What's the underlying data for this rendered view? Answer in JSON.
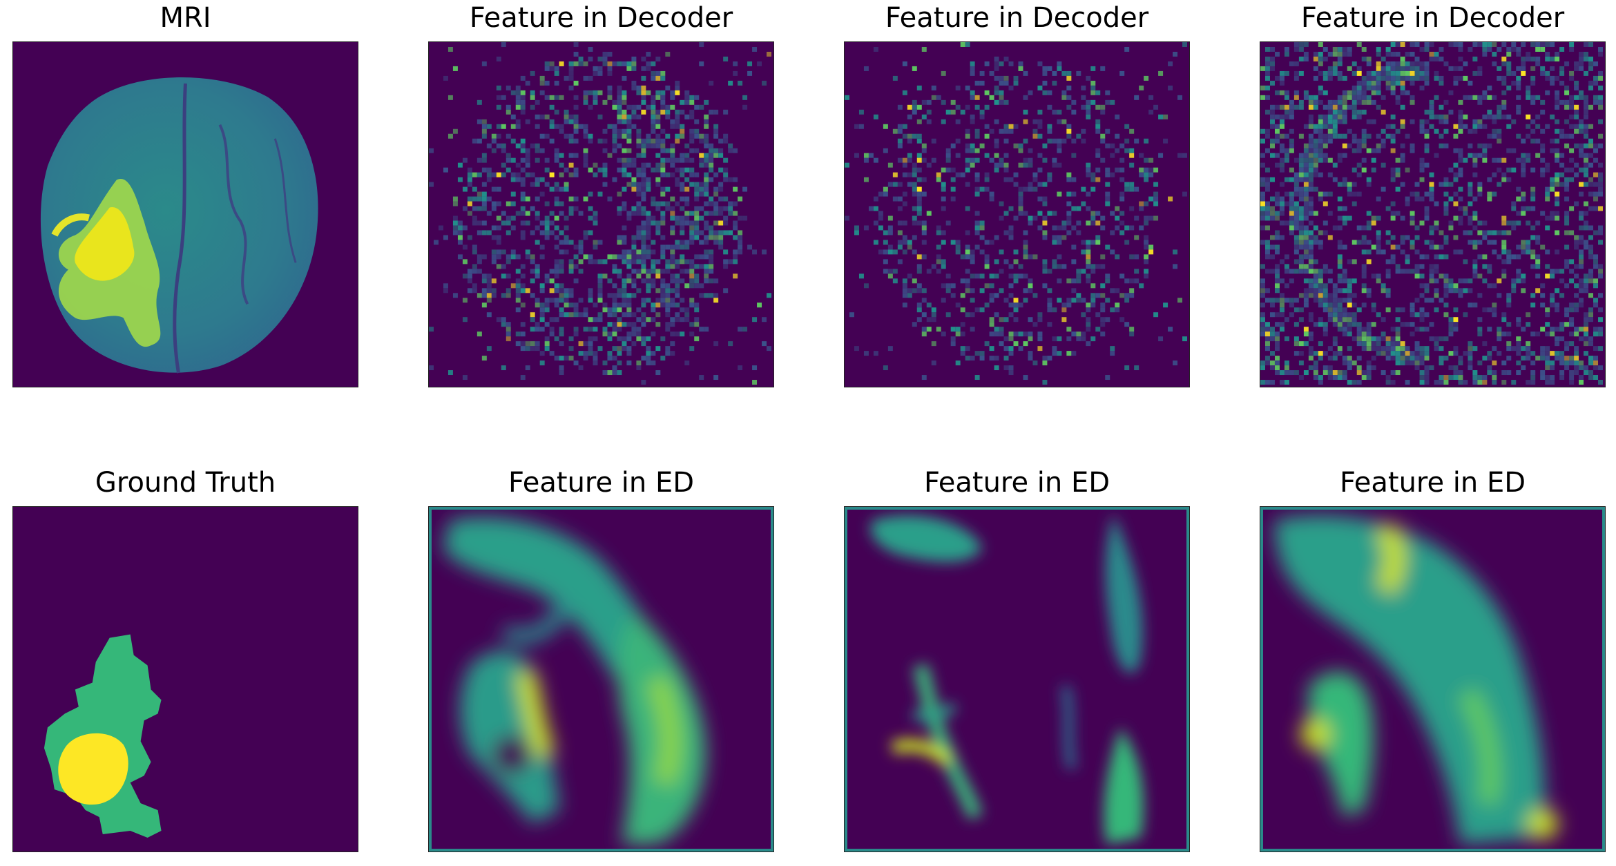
{
  "figure": {
    "colormap": [
      "#440154",
      "#3b528b",
      "#21918c",
      "#5ec962",
      "#fde725"
    ],
    "panels": [
      {
        "title": "MRI",
        "kind": "mri"
      },
      {
        "title": "Feature in Decoder",
        "kind": "decoder-a"
      },
      {
        "title": "Feature in Decoder",
        "kind": "decoder-b"
      },
      {
        "title": "Feature in Decoder",
        "kind": "decoder-c"
      },
      {
        "title": "Ground Truth",
        "kind": "ground-truth"
      },
      {
        "title": "Feature in ED",
        "kind": "ed-a"
      },
      {
        "title": "Feature in ED",
        "kind": "ed-b"
      },
      {
        "title": "Feature in ED",
        "kind": "ed-c"
      }
    ],
    "ground_truth_colors": {
      "background": "#440154",
      "edema": "#35b779",
      "core": "#fde725"
    }
  }
}
